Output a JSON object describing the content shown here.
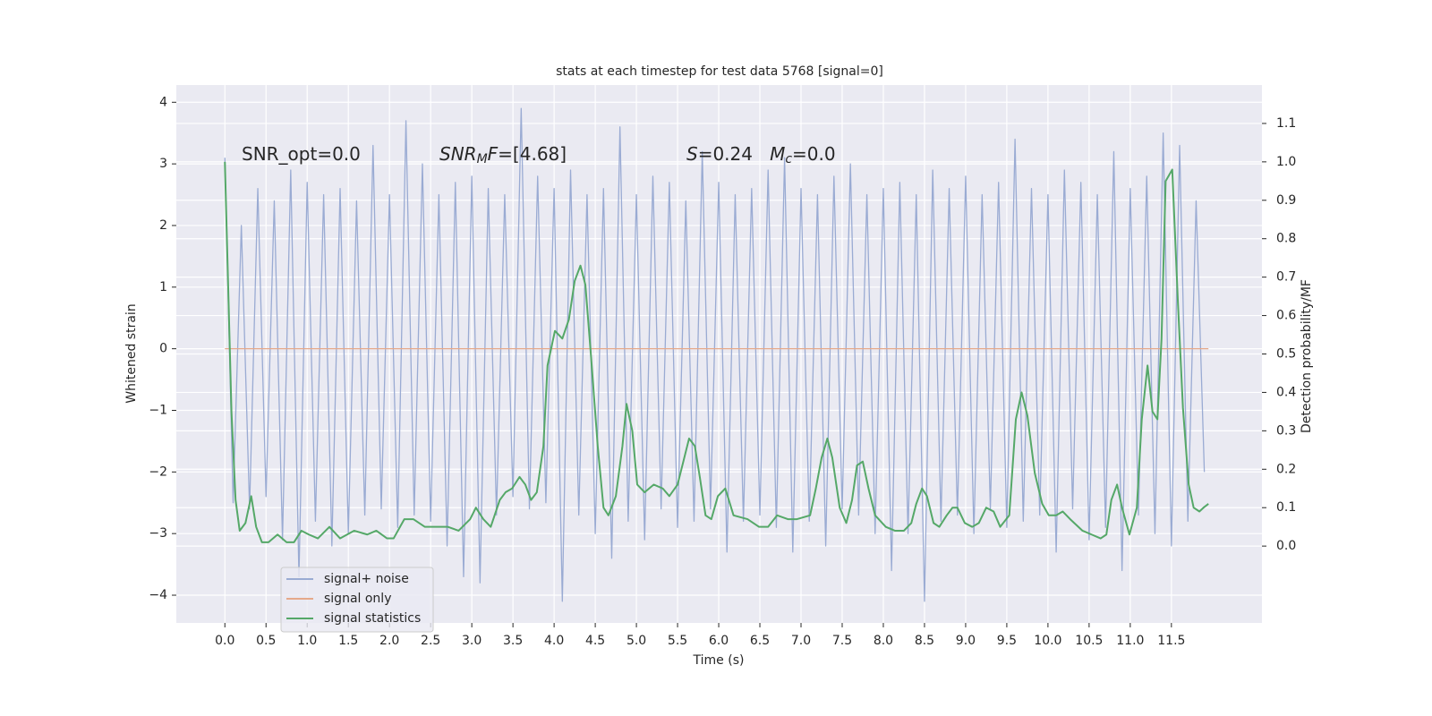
{
  "chart_data": {
    "type": "line",
    "title": "stats at each timestep for test data 5768 [signal=0]",
    "xlabel": "Time (s)",
    "ylabel": "Whitened strain",
    "y2label": "Detection probability/MF",
    "xlim": [
      -0.59,
      12.6
    ],
    "ylim": [
      -4.45,
      4.28
    ],
    "y2lim": [
      -0.2,
      1.2
    ],
    "xticks": [
      {
        "value": 0,
        "label": "0.0"
      },
      {
        "value": 0.5,
        "label": "0.5"
      },
      {
        "value": 1,
        "label": "1.0"
      },
      {
        "value": 1.5,
        "label": "1.5"
      },
      {
        "value": 2,
        "label": "2.0"
      },
      {
        "value": 2.5,
        "label": "2.5"
      },
      {
        "value": 3,
        "label": "3.0"
      },
      {
        "value": 3.5,
        "label": "3.5"
      },
      {
        "value": 4,
        "label": "4.0"
      },
      {
        "value": 4.5,
        "label": "4.5"
      },
      {
        "value": 5,
        "label": "5.0"
      },
      {
        "value": 5.5,
        "label": "5.5"
      },
      {
        "value": 6,
        "label": "6.0"
      },
      {
        "value": 6.5,
        "label": "6.5"
      },
      {
        "value": 7,
        "label": "7.0"
      },
      {
        "value": 7.5,
        "label": "7.5"
      },
      {
        "value": 8,
        "label": "8.0"
      },
      {
        "value": 8.5,
        "label": "8.5"
      },
      {
        "value": 9,
        "label": "9.0"
      },
      {
        "value": 9.5,
        "label": "9.5"
      },
      {
        "value": 10,
        "label": "10.0"
      },
      {
        "value": 10.5,
        "label": "10.5"
      },
      {
        "value": 11,
        "label": "11.0"
      },
      {
        "value": 11.5,
        "label": "11.5"
      }
    ],
    "yticks": [
      {
        "value": -4,
        "label": "−4"
      },
      {
        "value": -3,
        "label": "−3"
      },
      {
        "value": -2,
        "label": "−2"
      },
      {
        "value": -1,
        "label": "−1"
      },
      0,
      1,
      2,
      3,
      4
    ],
    "y2ticks": [
      {
        "value": 0,
        "label": "0.0"
      },
      {
        "value": 0.1,
        "label": "0.1"
      },
      {
        "value": 0.2,
        "label": "0.2"
      },
      {
        "value": 0.3,
        "label": "0.3"
      },
      {
        "value": 0.4,
        "label": "0.4"
      },
      {
        "value": 0.5,
        "label": "0.5"
      },
      {
        "value": 0.6,
        "label": "0.6"
      },
      {
        "value": 0.7,
        "label": "0.7"
      },
      {
        "value": 0.8,
        "label": "0.8"
      },
      {
        "value": 0.9,
        "label": "0.9"
      },
      {
        "value": 1,
        "label": "1.0"
      },
      {
        "value": 1.1,
        "label": "1.1"
      }
    ],
    "grid": true,
    "legend": "lower left",
    "annotations": [
      {
        "segments": [
          {
            "text": "SNR_opt=0.0"
          }
        ]
      },
      {
        "segments": [
          {
            "text": "SNR",
            "italic": true
          },
          {
            "text": "M",
            "italic": true,
            "sub": true
          },
          {
            "text": "F",
            "italic": true
          },
          {
            "text": "=[4.68]"
          }
        ]
      },
      {
        "segments": [
          {
            "text": "S",
            "italic": true
          },
          {
            "text": "=0.24   "
          },
          {
            "text": "M",
            "italic": true
          },
          {
            "text": "c",
            "italic": true,
            "sub": true
          },
          {
            "text": "=0.0"
          }
        ]
      }
    ],
    "series": [
      {
        "name": "signal+ noise",
        "color": "#9aabd3",
        "x": [
          0.0,
          0.1,
          0.2,
          0.3,
          0.4,
          0.5,
          0.6,
          0.7,
          0.8,
          0.9,
          1.0,
          1.1,
          1.2,
          1.3,
          1.4,
          1.5,
          1.6,
          1.7,
          1.8,
          1.9,
          2.0,
          2.1,
          2.2,
          2.3,
          2.4,
          2.5,
          2.6,
          2.7,
          2.8,
          2.9,
          3.0,
          3.1,
          3.2,
          3.3,
          3.4,
          3.5,
          3.6,
          3.7,
          3.8,
          3.9,
          4.0,
          4.1,
          4.2,
          4.3,
          4.4,
          4.5,
          4.6,
          4.7,
          4.8,
          4.9,
          5.0,
          5.1,
          5.2,
          5.3,
          5.4,
          5.5,
          5.6,
          5.7,
          5.8,
          5.9,
          6.0,
          6.1,
          6.2,
          6.3,
          6.4,
          6.5,
          6.6,
          6.7,
          6.8,
          6.9,
          7.0,
          7.1,
          7.2,
          7.3,
          7.4,
          7.5,
          7.6,
          7.7,
          7.8,
          7.9,
          8.0,
          8.1,
          8.2,
          8.3,
          8.4,
          8.5,
          8.6,
          8.7,
          8.8,
          8.9,
          9.0,
          9.1,
          9.2,
          9.3,
          9.4,
          9.5,
          9.6,
          9.7,
          9.8,
          9.9,
          10.0,
          10.1,
          10.2,
          10.3,
          10.4,
          10.5,
          10.6,
          10.7,
          10.8,
          10.9,
          11.0,
          11.1,
          11.2,
          11.3,
          11.4,
          11.5,
          11.6,
          11.7,
          11.8,
          11.9
        ],
        "values": [
          3.1,
          -2.5,
          2.0,
          -2.6,
          2.6,
          -2.4,
          2.4,
          -3.1,
          2.9,
          -3.7,
          2.7,
          -2.8,
          2.5,
          -3.2,
          2.6,
          -3.0,
          2.4,
          -2.7,
          3.3,
          -2.6,
          2.5,
          -2.9,
          3.7,
          -2.7,
          3.0,
          -2.8,
          2.5,
          -3.2,
          2.7,
          -3.7,
          2.8,
          -3.8,
          2.6,
          -2.7,
          2.5,
          -2.4,
          3.9,
          -2.6,
          2.8,
          -2.5,
          2.6,
          -4.1,
          2.9,
          -2.7,
          2.5,
          -3.0,
          2.6,
          -3.4,
          3.6,
          -2.8,
          2.5,
          -3.1,
          2.8,
          -2.6,
          2.7,
          -2.9,
          2.4,
          -2.8,
          3.2,
          -2.6,
          2.7,
          -3.3,
          2.5,
          -2.8,
          2.6,
          -2.7,
          2.9,
          -2.9,
          3.1,
          -3.3,
          2.6,
          -2.8,
          2.5,
          -3.2,
          2.8,
          -2.6,
          3.0,
          -2.7,
          2.5,
          -3.0,
          2.6,
          -3.6,
          2.7,
          -3.0,
          2.5,
          -4.1,
          2.9,
          -2.8,
          2.6,
          -2.7,
          2.8,
          -3.0,
          2.5,
          -2.6,
          2.7,
          -2.9,
          3.4,
          -2.8,
          2.6,
          -2.7,
          2.5,
          -3.3,
          2.9,
          -2.6,
          2.7,
          -3.1,
          2.5,
          -2.9,
          3.2,
          -3.6,
          2.6,
          -2.7,
          2.8,
          -3.0,
          3.5,
          -3.2,
          3.3,
          -2.8,
          2.4,
          -2.0
        ]
      },
      {
        "name": "signal only",
        "color": "#e5a98a",
        "x": [
          0.0,
          11.95
        ],
        "values": [
          0,
          0
        ]
      },
      {
        "name": "signal statistics",
        "color": "#55a868",
        "axis": "y2",
        "x": [
          0.0,
          0.08,
          0.13,
          0.18,
          0.25,
          0.32,
          0.38,
          0.45,
          0.53,
          0.64,
          0.75,
          0.84,
          0.93,
          1.02,
          1.13,
          1.27,
          1.4,
          1.57,
          1.73,
          1.84,
          1.97,
          2.05,
          2.18,
          2.29,
          2.43,
          2.71,
          2.84,
          2.98,
          3.05,
          3.14,
          3.23,
          3.34,
          3.41,
          3.49,
          3.58,
          3.65,
          3.72,
          3.79,
          3.87,
          3.92,
          4.01,
          4.1,
          4.18,
          4.25,
          4.32,
          4.38,
          4.45,
          4.53,
          4.6,
          4.66,
          4.75,
          4.83,
          4.88,
          4.95,
          5.01,
          5.1,
          5.21,
          5.32,
          5.4,
          5.5,
          5.57,
          5.64,
          5.71,
          5.77,
          5.84,
          5.91,
          5.99,
          6.08,
          6.18,
          6.35,
          6.49,
          6.6,
          6.71,
          6.84,
          6.95,
          7.11,
          7.18,
          7.25,
          7.32,
          7.38,
          7.47,
          7.55,
          7.62,
          7.68,
          7.75,
          7.82,
          7.9,
          8.03,
          8.14,
          8.25,
          8.34,
          8.4,
          8.47,
          8.53,
          8.61,
          8.68,
          8.77,
          8.84,
          8.9,
          8.99,
          9.08,
          9.16,
          9.25,
          9.34,
          9.42,
          9.53,
          9.61,
          9.68,
          9.75,
          9.84,
          9.93,
          10.01,
          10.1,
          10.18,
          10.27,
          10.42,
          10.53,
          10.64,
          10.71,
          10.77,
          10.84,
          10.9,
          10.99,
          11.08,
          11.14,
          11.21,
          11.27,
          11.33,
          11.38,
          11.43,
          11.51,
          11.58,
          11.64,
          11.71,
          11.77,
          11.84,
          11.89,
          11.95
        ],
        "values": [
          1.0,
          0.35,
          0.12,
          0.04,
          0.06,
          0.13,
          0.05,
          0.01,
          0.01,
          0.03,
          0.01,
          0.01,
          0.04,
          0.03,
          0.02,
          0.05,
          0.02,
          0.04,
          0.03,
          0.04,
          0.02,
          0.02,
          0.07,
          0.07,
          0.05,
          0.05,
          0.04,
          0.07,
          0.1,
          0.07,
          0.05,
          0.12,
          0.14,
          0.15,
          0.18,
          0.16,
          0.12,
          0.14,
          0.26,
          0.47,
          0.56,
          0.54,
          0.59,
          0.69,
          0.73,
          0.68,
          0.49,
          0.26,
          0.1,
          0.08,
          0.13,
          0.26,
          0.37,
          0.3,
          0.16,
          0.14,
          0.16,
          0.15,
          0.13,
          0.16,
          0.22,
          0.28,
          0.26,
          0.18,
          0.08,
          0.07,
          0.13,
          0.15,
          0.08,
          0.07,
          0.05,
          0.05,
          0.08,
          0.07,
          0.07,
          0.08,
          0.15,
          0.23,
          0.28,
          0.23,
          0.1,
          0.06,
          0.12,
          0.21,
          0.22,
          0.15,
          0.08,
          0.05,
          0.04,
          0.04,
          0.06,
          0.11,
          0.15,
          0.13,
          0.06,
          0.05,
          0.08,
          0.1,
          0.1,
          0.06,
          0.05,
          0.06,
          0.1,
          0.09,
          0.05,
          0.08,
          0.33,
          0.4,
          0.34,
          0.19,
          0.11,
          0.08,
          0.08,
          0.09,
          0.07,
          0.04,
          0.03,
          0.02,
          0.03,
          0.12,
          0.16,
          0.1,
          0.03,
          0.1,
          0.33,
          0.47,
          0.35,
          0.33,
          0.54,
          0.95,
          0.98,
          0.63,
          0.36,
          0.16,
          0.1,
          0.09,
          0.1,
          0.11
        ]
      }
    ]
  }
}
